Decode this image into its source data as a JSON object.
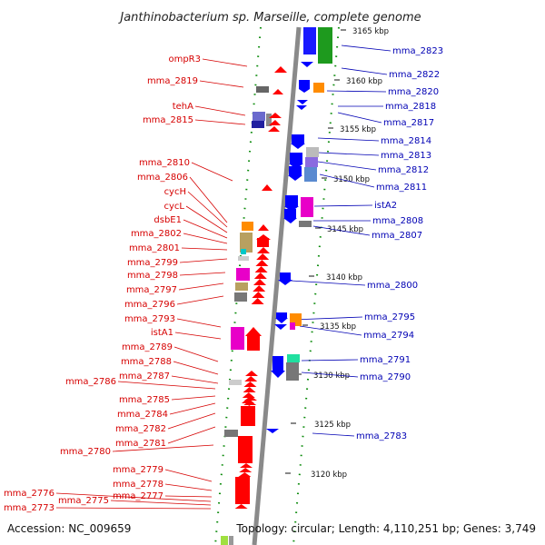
{
  "title": "Janthinobacterium sp. Marseille, complete genome",
  "footer": {
    "accession": "Accession: NC_009659",
    "summary": "Topology: circular; Length: 4,110,251 bp; Genes: 3,749"
  },
  "colors": {
    "left_labels": "#d60000",
    "right_labels": "#0000b4",
    "backbone": "#8a8a8a",
    "tick": "#0a8a0a",
    "forward_cds": "#ff0000",
    "reverse_cds": "#0000ff"
  },
  "scale_ticks": [
    "3165 kbp",
    "3160 kbp",
    "3155 kbp",
    "3150 kbp",
    "3145 kbp",
    "3140 kbp",
    "3135 kbp",
    "3130 kbp",
    "3125 kbp",
    "3120 kbp"
  ],
  "left_labels": [
    "ompR3",
    "mma_2819",
    "tehA",
    "mma_2815",
    "mma_2810",
    "mma_2806",
    "cycH",
    "cycL",
    "dsbE1",
    "mma_2802",
    "mma_2801",
    "mma_2799",
    "mma_2798",
    "mma_2797",
    "mma_2796",
    "mma_2793",
    "istA1",
    "mma_2789",
    "mma_2788",
    "mma_2787",
    "mma_2786",
    "mma_2785",
    "mma_2784",
    "mma_2782",
    "mma_2781",
    "mma_2780",
    "mma_2779",
    "mma_2778",
    "mma_2777",
    "mma_2776",
    "mma_2775",
    "mma_2773"
  ],
  "right_labels": [
    "mma_2823",
    "mma_2822",
    "mma_2820",
    "mma_2818",
    "mma_2817",
    "mma_2814",
    "mma_2813",
    "mma_2812",
    "mma_2811",
    "istA2",
    "mma_2808",
    "mma_2807",
    "mma_2800",
    "mma_2795",
    "mma_2794",
    "mma_2791",
    "mma_2790",
    "mma_2783"
  ]
}
